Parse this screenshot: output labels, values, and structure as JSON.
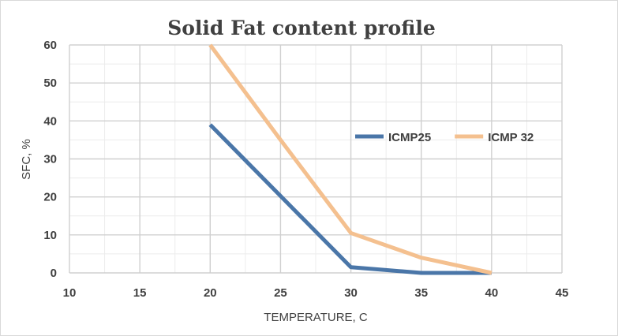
{
  "chart_data": {
    "type": "line",
    "title": "Solid Fat content profile",
    "xlabel": "TEMPERATURE, C",
    "ylabel": "SFC, %",
    "xlim": [
      10,
      45
    ],
    "ylim": [
      0,
      60
    ],
    "x_ticks": [
      10,
      15,
      20,
      25,
      30,
      35,
      40,
      45
    ],
    "y_ticks": [
      0,
      10,
      20,
      30,
      40,
      50,
      60
    ],
    "x_minor_step": 2.5,
    "y_minor_step": 5,
    "grid": true,
    "legend_position": "right-center",
    "series": [
      {
        "name": "ICMP25",
        "color": "#4a76a8",
        "x": [
          20,
          30,
          35,
          40
        ],
        "y": [
          39,
          1.5,
          0,
          0
        ]
      },
      {
        "name": "ICMP 32",
        "color": "#f4c08f",
        "x": [
          20,
          25,
          30,
          35,
          40
        ],
        "y": [
          60,
          35,
          10.5,
          4,
          0
        ]
      }
    ]
  }
}
